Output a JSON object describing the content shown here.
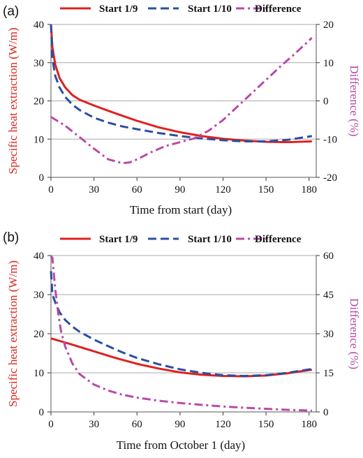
{
  "colors": {
    "start_1_9": "#e02020",
    "start_1_10": "#2a4f9e",
    "difference": "#b84aa8",
    "left_axis_label": "#d9261c",
    "right_axis_label": "#b44aa3",
    "grid": "#a9a9a9"
  },
  "chart_data": [
    {
      "panel": "(a)",
      "type": "line",
      "xlabel": "Time from start (day)",
      "ylabel": "Specific heat extraction (W/m)",
      "ylabel_right": "Difference (%)",
      "xlim": [
        0,
        185
      ],
      "ylim": [
        0,
        40
      ],
      "ylim_right": [
        -20,
        20
      ],
      "xticks": [
        0,
        30,
        60,
        90,
        120,
        150,
        180
      ],
      "yticks": [
        0,
        10,
        20,
        30,
        40
      ],
      "yticks_right": [
        -20,
        -10,
        0,
        10,
        20
      ],
      "legend": "top",
      "grid": "horizontal",
      "series": [
        {
          "name": "Start 1/9",
          "axis": "left",
          "style": "solid",
          "x": [
            0,
            1,
            3,
            6,
            10,
            15,
            20,
            30,
            40,
            50,
            60,
            75,
            90,
            105,
            120,
            135,
            150,
            165,
            182
          ],
          "y": [
            40,
            34,
            29.5,
            26,
            23.5,
            21.5,
            20.3,
            18.8,
            17.4,
            16.1,
            14.8,
            13.1,
            11.8,
            10.8,
            10.1,
            9.6,
            9.3,
            9.2,
            9.4
          ]
        },
        {
          "name": "Start 1/10",
          "axis": "left",
          "style": "dashed",
          "x": [
            0,
            1,
            3,
            6,
            10,
            15,
            20,
            30,
            40,
            50,
            60,
            75,
            90,
            105,
            120,
            135,
            150,
            165,
            182
          ],
          "y": [
            40,
            31,
            26.5,
            23.5,
            21,
            19,
            17.6,
            15.6,
            14.3,
            13.3,
            12.6,
            11.6,
            10.8,
            10.2,
            9.7,
            9.4,
            9.4,
            9.8,
            10.8
          ]
        },
        {
          "name": "Difference",
          "axis": "right",
          "style": "dashdot",
          "x": [
            0,
            10,
            20,
            30,
            40,
            50,
            55,
            60,
            70,
            80,
            90,
            100,
            110,
            120,
            130,
            140,
            150,
            160,
            170,
            182
          ],
          "y": [
            -4.2,
            -6.5,
            -9.5,
            -12.5,
            -15.3,
            -16.3,
            -16.1,
            -15.3,
            -13.4,
            -11.8,
            -10.8,
            -9.8,
            -7.8,
            -5,
            -1.5,
            2,
            5.5,
            9,
            12.3,
            16.5
          ]
        }
      ]
    },
    {
      "panel": "(b)",
      "type": "line",
      "xlabel": "Time from October 1 (day)",
      "ylabel": "Specific heat extraction (W/m)",
      "ylabel_right": "Difference (%)",
      "xlim": [
        0,
        185
      ],
      "ylim": [
        0,
        40
      ],
      "ylim_right": [
        0,
        60
      ],
      "xticks": [
        0,
        30,
        60,
        90,
        120,
        150,
        180
      ],
      "yticks": [
        0,
        10,
        20,
        30,
        40
      ],
      "yticks_right": [
        0,
        15,
        30,
        45,
        60
      ],
      "legend": "top",
      "grid": "horizontal",
      "series": [
        {
          "name": "Start 1/9",
          "axis": "left",
          "style": "solid",
          "x": [
            0,
            15,
            30,
            45,
            60,
            75,
            90,
            105,
            120,
            135,
            150,
            165,
            182
          ],
          "y": [
            18.8,
            17.2,
            15.5,
            13.8,
            12.3,
            11.1,
            10.1,
            9.5,
            9.2,
            9.1,
            9.3,
            9.9,
            10.8
          ]
        },
        {
          "name": "Start 1/10",
          "axis": "left",
          "style": "dashed",
          "x": [
            0,
            1,
            3,
            6,
            10,
            15,
            20,
            30,
            40,
            50,
            60,
            75,
            90,
            105,
            120,
            135,
            150,
            165,
            182
          ],
          "y": [
            36,
            30,
            28,
            25.5,
            23.5,
            21.8,
            20.5,
            18.5,
            16.8,
            15.2,
            13.8,
            12.2,
            10.9,
            10,
            9.4,
            9.2,
            9.4,
            10,
            11
          ]
        },
        {
          "name": "Difference",
          "axis": "right",
          "style": "dashdot",
          "x": [
            0,
            1,
            2,
            3,
            5,
            7,
            10,
            15,
            20,
            30,
            40,
            50,
            60,
            75,
            90,
            105,
            120,
            135,
            150,
            165,
            182
          ],
          "y": [
            60,
            59,
            53,
            47,
            38,
            31,
            25,
            18.5,
            14.5,
            10.5,
            8.2,
            6.6,
            5.5,
            4.3,
            3.4,
            2.7,
            2.1,
            1.6,
            1.2,
            0.8,
            0.5
          ]
        }
      ]
    }
  ]
}
